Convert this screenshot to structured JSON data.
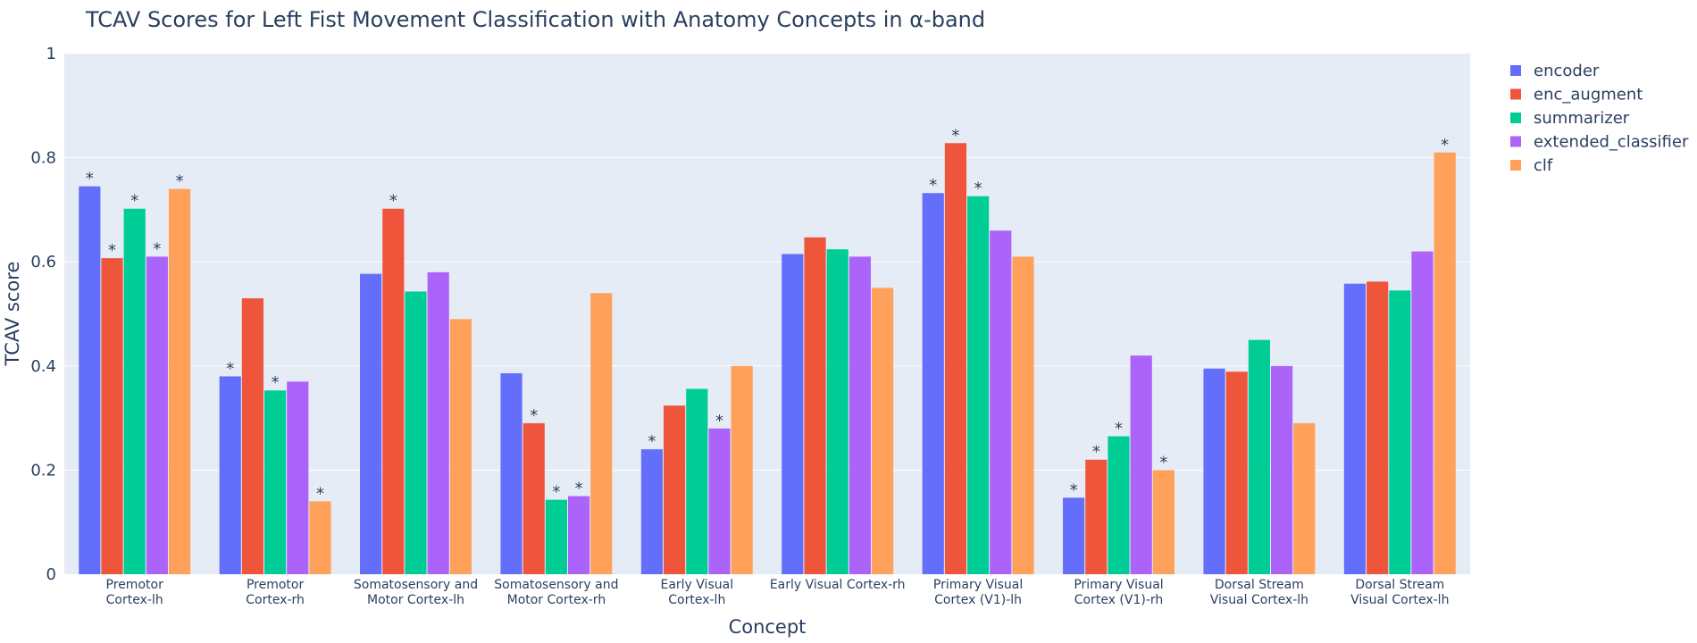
{
  "chart_data": {
    "type": "bar",
    "title": "TCAV Scores for Left Fist Movement Classification with Anatomy Concepts in α-band",
    "xlabel": "Concept",
    "ylabel": "TCAV score",
    "ylim": [
      0,
      1
    ],
    "yticks": [
      0,
      0.2,
      0.4,
      0.6,
      0.8,
      1
    ],
    "ytick_labels": [
      "0",
      "0.2",
      "0.4",
      "0.6",
      "0.8",
      "1"
    ],
    "grid": true,
    "legend_position": "top-right",
    "categories": [
      [
        "Premotor",
        "Cortex-lh"
      ],
      [
        "Premotor",
        "Cortex-rh"
      ],
      [
        "Somatosensory and",
        "Motor Cortex-lh"
      ],
      [
        "Somatosensory and",
        "Motor Cortex-rh"
      ],
      [
        "Early Visual",
        "Cortex-lh"
      ],
      [
        "Early Visual  Cortex-rh"
      ],
      [
        "Primary Visual",
        "Cortex (V1)-lh"
      ],
      [
        "Primary Visual",
        "Cortex (V1)-rh"
      ],
      [
        "Dorsal Stream",
        "Visual Cortex-lh"
      ],
      [
        "Dorsal Stream",
        "Visual Cortex-lh"
      ]
    ],
    "significance_marker": "*",
    "series": [
      {
        "name": "encoder",
        "color": "#636efa",
        "values": [
          0.745,
          0.38,
          0.577,
          0.386,
          0.24,
          0.615,
          0.732,
          0.147,
          0.395,
          0.558
        ],
        "significant": [
          true,
          true,
          false,
          false,
          true,
          false,
          true,
          true,
          false,
          false
        ]
      },
      {
        "name": "enc_augment",
        "color": "#ef553b",
        "values": [
          0.607,
          0.53,
          0.702,
          0.29,
          0.324,
          0.647,
          0.828,
          0.22,
          0.389,
          0.562
        ],
        "significant": [
          true,
          false,
          true,
          true,
          false,
          false,
          true,
          true,
          false,
          false
        ]
      },
      {
        "name": "summarizer",
        "color": "#00cc96",
        "values": [
          0.702,
          0.353,
          0.543,
          0.143,
          0.356,
          0.624,
          0.726,
          0.265,
          0.45,
          0.545
        ],
        "significant": [
          true,
          true,
          false,
          true,
          false,
          false,
          true,
          true,
          false,
          false
        ]
      },
      {
        "name": "extended_classifier",
        "color": "#ab63fa",
        "values": [
          0.61,
          0.37,
          0.58,
          0.15,
          0.28,
          0.61,
          0.66,
          0.42,
          0.4,
          0.62
        ],
        "significant": [
          true,
          false,
          false,
          true,
          true,
          false,
          false,
          false,
          false,
          false
        ]
      },
      {
        "name": "clf",
        "color": "#ffa15a",
        "values": [
          0.74,
          0.14,
          0.49,
          0.54,
          0.4,
          0.55,
          0.61,
          0.2,
          0.29,
          0.81
        ],
        "significant": [
          true,
          true,
          false,
          false,
          false,
          false,
          false,
          true,
          false,
          true
        ]
      }
    ]
  }
}
